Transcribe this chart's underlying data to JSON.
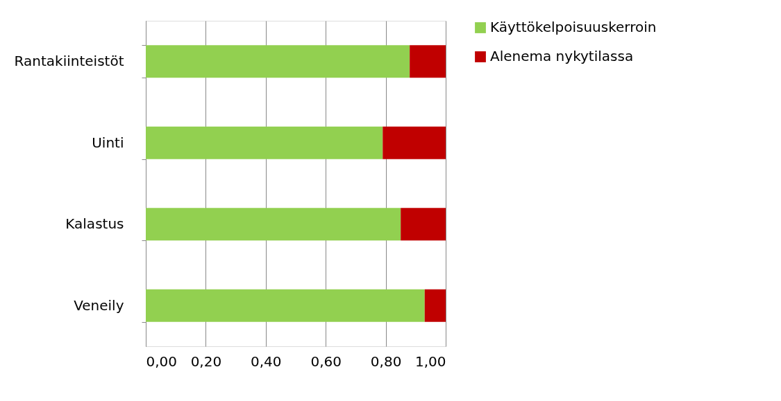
{
  "chart_data": {
    "type": "bar",
    "orientation": "horizontal",
    "stacked": true,
    "categories": [
      "Rantakiinteistöt",
      "Uinti",
      "Kalastus",
      "Veneily"
    ],
    "series": [
      {
        "name": "Käyttökelpoisuuskerroin",
        "color": "#92d050",
        "values": [
          0.88,
          0.79,
          0.85,
          0.93
        ]
      },
      {
        "name": "Alenema nykytilassa",
        "color": "#c00000",
        "values": [
          0.12,
          0.21,
          0.15,
          0.07
        ]
      }
    ],
    "xlim": [
      0,
      1
    ],
    "xticks": [
      {
        "value": 0,
        "label": "0,00"
      },
      {
        "value": 0.2,
        "label": "0,20"
      },
      {
        "value": 0.4,
        "label": "0,40"
      },
      {
        "value": 0.6,
        "label": "0,60"
      },
      {
        "value": 0.8,
        "label": "0,80"
      },
      {
        "value": 1,
        "label": "1,00"
      }
    ],
    "grid": "x",
    "legend": "right"
  }
}
